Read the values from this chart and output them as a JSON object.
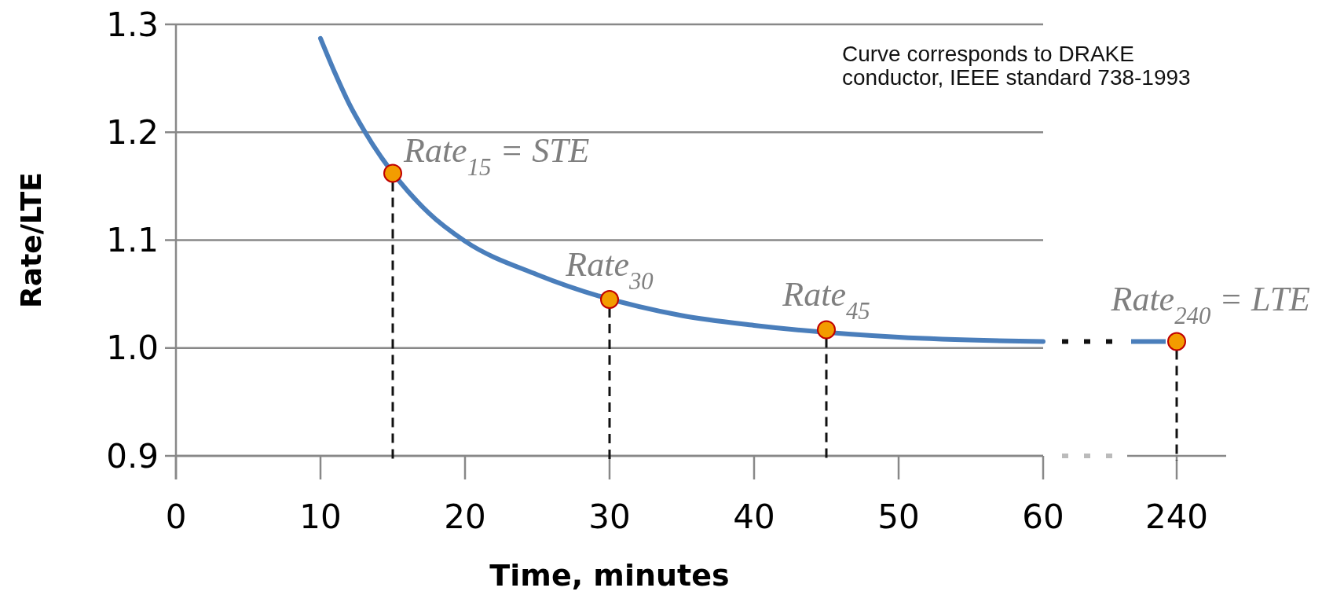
{
  "chart_data": [
    {
      "type": "line",
      "xlabel": "Time, minutes",
      "ylabel": "Rate/LTE",
      "xlim": [
        0,
        60
      ],
      "xticks": [
        0,
        10,
        20,
        30,
        40,
        50,
        60
      ],
      "ylim": [
        0.9,
        1.3
      ],
      "yticks": [
        0.9,
        {
          "value": 1,
          "label": "1.0"
        },
        1.1,
        1.2,
        1.3
      ],
      "grid": "y",
      "series": [
        {
          "color": "#4a7ebb",
          "marker": "none",
          "x": [
            10,
            11,
            12,
            13,
            17.5,
            20,
            25,
            35,
            40,
            50,
            60
          ],
          "values": [
            1.287,
            1.255,
            1.226,
            1.202,
            1.125,
            1.099,
            1.068,
            1.03,
            1.021,
            1.01,
            1.006
          ]
        },
        {
          "type": "scatter",
          "color": "#f39c00",
          "marker": "circle",
          "x": [
            15,
            30,
            45
          ],
          "values": [
            1.162,
            1.045,
            1.017
          ]
        }
      ],
      "annotations": [
        {
          "text": "Rate$_{15}$ = STE",
          "x": 15,
          "y": 1.162
        },
        {
          "text": "Rate$_{30}$",
          "x": 30,
          "y": 1.045
        },
        {
          "text": "Rate$_{45}$",
          "x": 45,
          "y": 1.017
        },
        "Curve corresponds to DRAKE\nconductor, IEEE standard 738-1993"
      ]
    },
    {
      "type": "scatter",
      "categories": [
        "240"
      ],
      "ylim": [
        0.9,
        1.3
      ],
      "tick_labels": "x",
      "series": [
        {
          "color": "#f39c00",
          "marker": "circle",
          "values": [
            1.006
          ]
        }
      ],
      "annotations": [
        {
          "text": "Rate$_{240}$ = LTE",
          "x": "240",
          "y": 1.006
        }
      ]
    }
  ]
}
